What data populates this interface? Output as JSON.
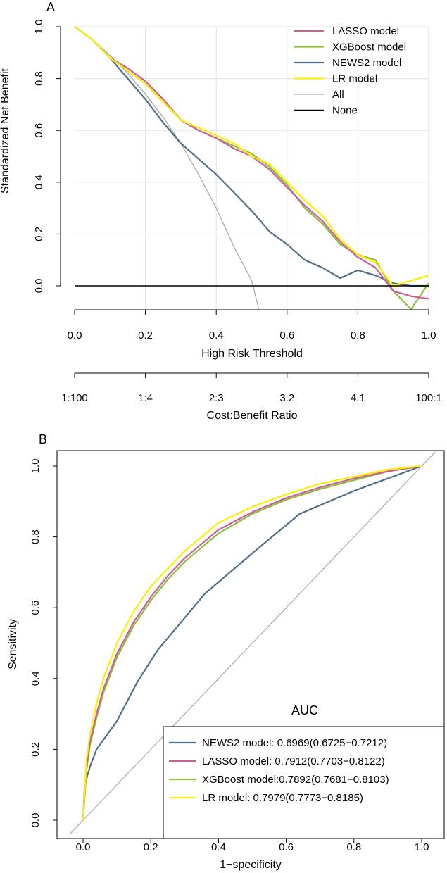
{
  "chart_data": [
    {
      "panel": "A",
      "type": "line",
      "xlabel": "High Risk Threshold",
      "ylabel": "Standardized Net Benefit",
      "xlim": [
        0.0,
        1.0
      ],
      "ylim": [
        -0.09,
        1.0
      ],
      "x_ticks": [
        "0.0",
        "0.2",
        "0.4",
        "0.6",
        "0.8",
        "1.0"
      ],
      "y_ticks": [
        "0.0",
        "0.2",
        "0.4",
        "0.6",
        "0.8",
        "1.0"
      ],
      "cost_benefit_title": "Cost:Benefit Ratio",
      "cost_benefit_ticks": [
        "1:100",
        "1:4",
        "2:3",
        "3:2",
        "4:1",
        "100:1"
      ],
      "grid": true,
      "legend_position": "top-right",
      "series": [
        {
          "name": "LASSO model",
          "color": "#c9609a",
          "x": [
            0,
            0.05,
            0.1,
            0.15,
            0.2,
            0.25,
            0.3,
            0.35,
            0.4,
            0.45,
            0.5,
            0.55,
            0.6,
            0.65,
            0.7,
            0.75,
            0.8,
            0.85,
            0.9,
            0.95,
            1.0
          ],
          "y": [
            1.0,
            0.95,
            0.88,
            0.84,
            0.79,
            0.72,
            0.64,
            0.6,
            0.57,
            0.53,
            0.5,
            0.45,
            0.38,
            0.31,
            0.25,
            0.17,
            0.11,
            0.07,
            -0.02,
            -0.04,
            -0.05
          ]
        },
        {
          "name": "XGBoost model",
          "color": "#8cbf3f",
          "x": [
            0,
            0.05,
            0.1,
            0.15,
            0.2,
            0.25,
            0.3,
            0.35,
            0.4,
            0.45,
            0.5,
            0.55,
            0.6,
            0.65,
            0.7,
            0.75,
            0.8,
            0.85,
            0.9,
            0.95,
            1.0
          ],
          "y": [
            1.0,
            0.95,
            0.88,
            0.83,
            0.78,
            0.71,
            0.64,
            0.6,
            0.57,
            0.54,
            0.51,
            0.46,
            0.39,
            0.3,
            0.24,
            0.16,
            0.12,
            0.1,
            -0.02,
            -0.09,
            0.01
          ]
        },
        {
          "name": "NEWS2 model",
          "color": "#4e6e8a",
          "x": [
            0,
            0.05,
            0.1,
            0.15,
            0.2,
            0.25,
            0.3,
            0.35,
            0.4,
            0.45,
            0.5,
            0.55,
            0.6,
            0.65,
            0.7,
            0.75,
            0.8,
            0.85,
            0.9,
            0.95,
            1.0
          ],
          "y": [
            1.0,
            0.95,
            0.88,
            0.8,
            0.72,
            0.63,
            0.55,
            0.49,
            0.43,
            0.36,
            0.29,
            0.21,
            0.16,
            0.1,
            0.07,
            0.03,
            0.06,
            0.04,
            0.01,
            0.0,
            0.0
          ]
        },
        {
          "name": "LR model",
          "color": "#ffee00",
          "x": [
            0,
            0.05,
            0.1,
            0.15,
            0.2,
            0.25,
            0.3,
            0.35,
            0.4,
            0.45,
            0.5,
            0.55,
            0.6,
            0.65,
            0.7,
            0.75,
            0.8,
            0.85,
            0.9,
            0.95,
            1.0
          ],
          "y": [
            1.0,
            0.95,
            0.88,
            0.83,
            0.78,
            0.71,
            0.64,
            0.61,
            0.58,
            0.55,
            0.5,
            0.47,
            0.4,
            0.33,
            0.27,
            0.18,
            0.12,
            0.09,
            0.0,
            0.02,
            0.04
          ]
        },
        {
          "name": "All",
          "color": "#aaaaaa",
          "x": [
            0,
            0.05,
            0.1,
            0.15,
            0.2,
            0.25,
            0.3,
            0.35,
            0.4,
            0.45,
            0.5,
            0.52
          ],
          "y": [
            1.0,
            0.95,
            0.89,
            0.82,
            0.74,
            0.65,
            0.55,
            0.43,
            0.3,
            0.15,
            0.02,
            -0.09
          ]
        },
        {
          "name": "None",
          "color": "#000000",
          "x": [
            0,
            1.0
          ],
          "y": [
            0,
            0
          ]
        }
      ]
    },
    {
      "panel": "B",
      "type": "line",
      "xlabel": "1−specificity",
      "ylabel": "Sensitivity",
      "xlim": [
        -0.04,
        1.04
      ],
      "ylim": [
        -0.04,
        1.04
      ],
      "x_ticks": [
        "0.0",
        "0.2",
        "0.4",
        "0.6",
        "0.8",
        "1.0"
      ],
      "y_ticks": [
        "0.0",
        "0.2",
        "0.4",
        "0.6",
        "0.8",
        "1.0"
      ],
      "legend_title": "AUC",
      "legend_position": "bottom-right",
      "series": [
        {
          "name": "NEWS2 model",
          "label": "NEWS2 model: 0.6969(0.6725−0.7212)",
          "color": "#4e6e8a",
          "x": [
            0,
            0.005,
            0.02,
            0.04,
            0.1,
            0.16,
            0.22,
            0.36,
            0.52,
            0.64,
            0.8,
            1.0
          ],
          "y": [
            0,
            0.1,
            0.15,
            0.2,
            0.28,
            0.39,
            0.48,
            0.64,
            0.77,
            0.865,
            0.93,
            1.0
          ]
        },
        {
          "name": "LASSO model",
          "label": "LASSO model: 0.7912(0.7703−0.8122)",
          "color": "#c9609a",
          "x": [
            0,
            0.01,
            0.02,
            0.04,
            0.06,
            0.1,
            0.15,
            0.2,
            0.25,
            0.3,
            0.35,
            0.4,
            0.5,
            0.6,
            0.7,
            0.8,
            0.9,
            1.0
          ],
          "y": [
            0,
            0.15,
            0.22,
            0.3,
            0.37,
            0.47,
            0.56,
            0.63,
            0.69,
            0.74,
            0.78,
            0.82,
            0.87,
            0.91,
            0.94,
            0.965,
            0.985,
            1.0
          ]
        },
        {
          "name": "XGBoost model",
          "label": "XGBoost model:0.7892(0.7681−0.8103)",
          "color": "#8cbf3f",
          "x": [
            0,
            0.01,
            0.02,
            0.04,
            0.06,
            0.1,
            0.15,
            0.2,
            0.25,
            0.3,
            0.35,
            0.4,
            0.5,
            0.6,
            0.7,
            0.8,
            0.9,
            1.0
          ],
          "y": [
            0,
            0.14,
            0.21,
            0.29,
            0.36,
            0.46,
            0.55,
            0.62,
            0.68,
            0.73,
            0.77,
            0.81,
            0.865,
            0.905,
            0.935,
            0.96,
            0.985,
            1.0
          ]
        },
        {
          "name": "LR model",
          "label": "LR model: 0.7979(0.7773−0.8185)",
          "color": "#ffee00",
          "x": [
            0,
            0.01,
            0.02,
            0.04,
            0.06,
            0.1,
            0.15,
            0.2,
            0.25,
            0.3,
            0.35,
            0.4,
            0.5,
            0.6,
            0.7,
            0.8,
            0.9,
            1.0
          ],
          "y": [
            0,
            0.17,
            0.24,
            0.33,
            0.4,
            0.5,
            0.59,
            0.66,
            0.71,
            0.76,
            0.8,
            0.84,
            0.885,
            0.92,
            0.95,
            0.97,
            0.99,
            1.0
          ]
        },
        {
          "name": "Reference",
          "color": "#aaaaaa",
          "x": [
            -0.04,
            1.04
          ],
          "y": [
            -0.04,
            1.04
          ]
        }
      ]
    }
  ]
}
